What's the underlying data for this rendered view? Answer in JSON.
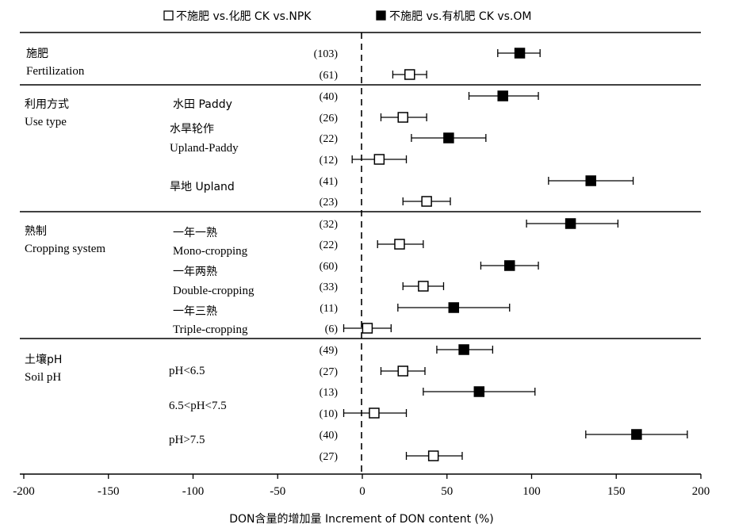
{
  "chart_data": {
    "type": "scatter",
    "subtype": "forest-plot-with-error-bars",
    "xlabel": "DON含量的增加量 Increment of  DON content (%)",
    "xlim": [
      -200,
      200
    ],
    "xticks": [
      -200,
      -150,
      -100,
      -50,
      0,
      50,
      100,
      150,
      200
    ],
    "reference_line_x": 0,
    "legend": {
      "placement": "top-center",
      "entries": [
        {
          "label": "不施肥 vs.化肥 CK vs.NPK",
          "marker": "open-square"
        },
        {
          "label": "不施肥 vs.有机肥 CK vs.OM",
          "marker": "filled-square"
        }
      ]
    },
    "groups": [
      {
        "name_cn": "施肥",
        "name_en": "Fertilization",
        "subgroups": [],
        "rows": [
          {
            "n": "(103)",
            "series": "OM",
            "mean": 93,
            "low": 80,
            "high": 105
          },
          {
            "n": "(61)",
            "series": "NPK",
            "mean": 28,
            "low": 18,
            "high": 38
          }
        ]
      },
      {
        "name_cn": "利用方式",
        "name_en": "Use type",
        "subgroups": [
          {
            "label": "水田 Paddy",
            "line2": ""
          },
          {
            "label": "水旱轮作",
            "line2": "Upland-Paddy"
          },
          {
            "label": "旱地 Upland",
            "line2": ""
          }
        ],
        "rows": [
          {
            "n": "(40)",
            "series": "OM",
            "mean": 83,
            "low": 63,
            "high": 104
          },
          {
            "n": "(26)",
            "series": "NPK",
            "mean": 24,
            "low": 11,
            "high": 38
          },
          {
            "n": "(22)",
            "series": "OM",
            "mean": 51,
            "low": 29,
            "high": 73
          },
          {
            "n": "(12)",
            "series": "NPK",
            "mean": 10,
            "low": -6,
            "high": 26
          },
          {
            "n": "(41)",
            "series": "OM",
            "mean": 135,
            "low": 110,
            "high": 160
          },
          {
            "n": "(23)",
            "series": "NPK",
            "mean": 38,
            "low": 24,
            "high": 52
          }
        ]
      },
      {
        "name_cn": "熟制",
        "name_en": "Cropping system",
        "subgroups": [
          {
            "label": "一年一熟",
            "line2": "Mono-cropping"
          },
          {
            "label": "一年两熟",
            "line2": "Double-cropping"
          },
          {
            "label": "一年三熟",
            "line2": "Triple-cropping"
          }
        ],
        "rows": [
          {
            "n": "(32)",
            "series": "OM",
            "mean": 123,
            "low": 97,
            "high": 151
          },
          {
            "n": "(22)",
            "series": "NPK",
            "mean": 22,
            "low": 9,
            "high": 36
          },
          {
            "n": "(60)",
            "series": "OM",
            "mean": 87,
            "low": 70,
            "high": 104
          },
          {
            "n": "(33)",
            "series": "NPK",
            "mean": 36,
            "low": 24,
            "high": 48
          },
          {
            "n": "(11)",
            "series": "OM",
            "mean": 54,
            "low": 21,
            "high": 87
          },
          {
            "n": "(6)",
            "series": "NPK",
            "mean": 3,
            "low": -11,
            "high": 17
          }
        ]
      },
      {
        "name_cn": "土壤pH",
        "name_en": "Soil pH",
        "subgroups": [
          {
            "label": "pH<6.5",
            "line2": ""
          },
          {
            "label": "6.5<pH<7.5",
            "line2": ""
          },
          {
            "label": "pH>7.5",
            "line2": ""
          }
        ],
        "rows": [
          {
            "n": "(49)",
            "series": "OM",
            "mean": 60,
            "low": 44,
            "high": 77
          },
          {
            "n": "(27)",
            "series": "NPK",
            "mean": 24,
            "low": 11,
            "high": 37
          },
          {
            "n": "(13)",
            "series": "OM",
            "mean": 69,
            "low": 36,
            "high": 102
          },
          {
            "n": "(10)",
            "series": "NPK",
            "mean": 7,
            "low": -11,
            "high": 26
          },
          {
            "n": "(40)",
            "series": "OM",
            "mean": 162,
            "low": 132,
            "high": 192
          },
          {
            "n": "(27)",
            "series": "NPK",
            "mean": 42,
            "low": 26,
            "high": 59
          }
        ]
      }
    ]
  }
}
